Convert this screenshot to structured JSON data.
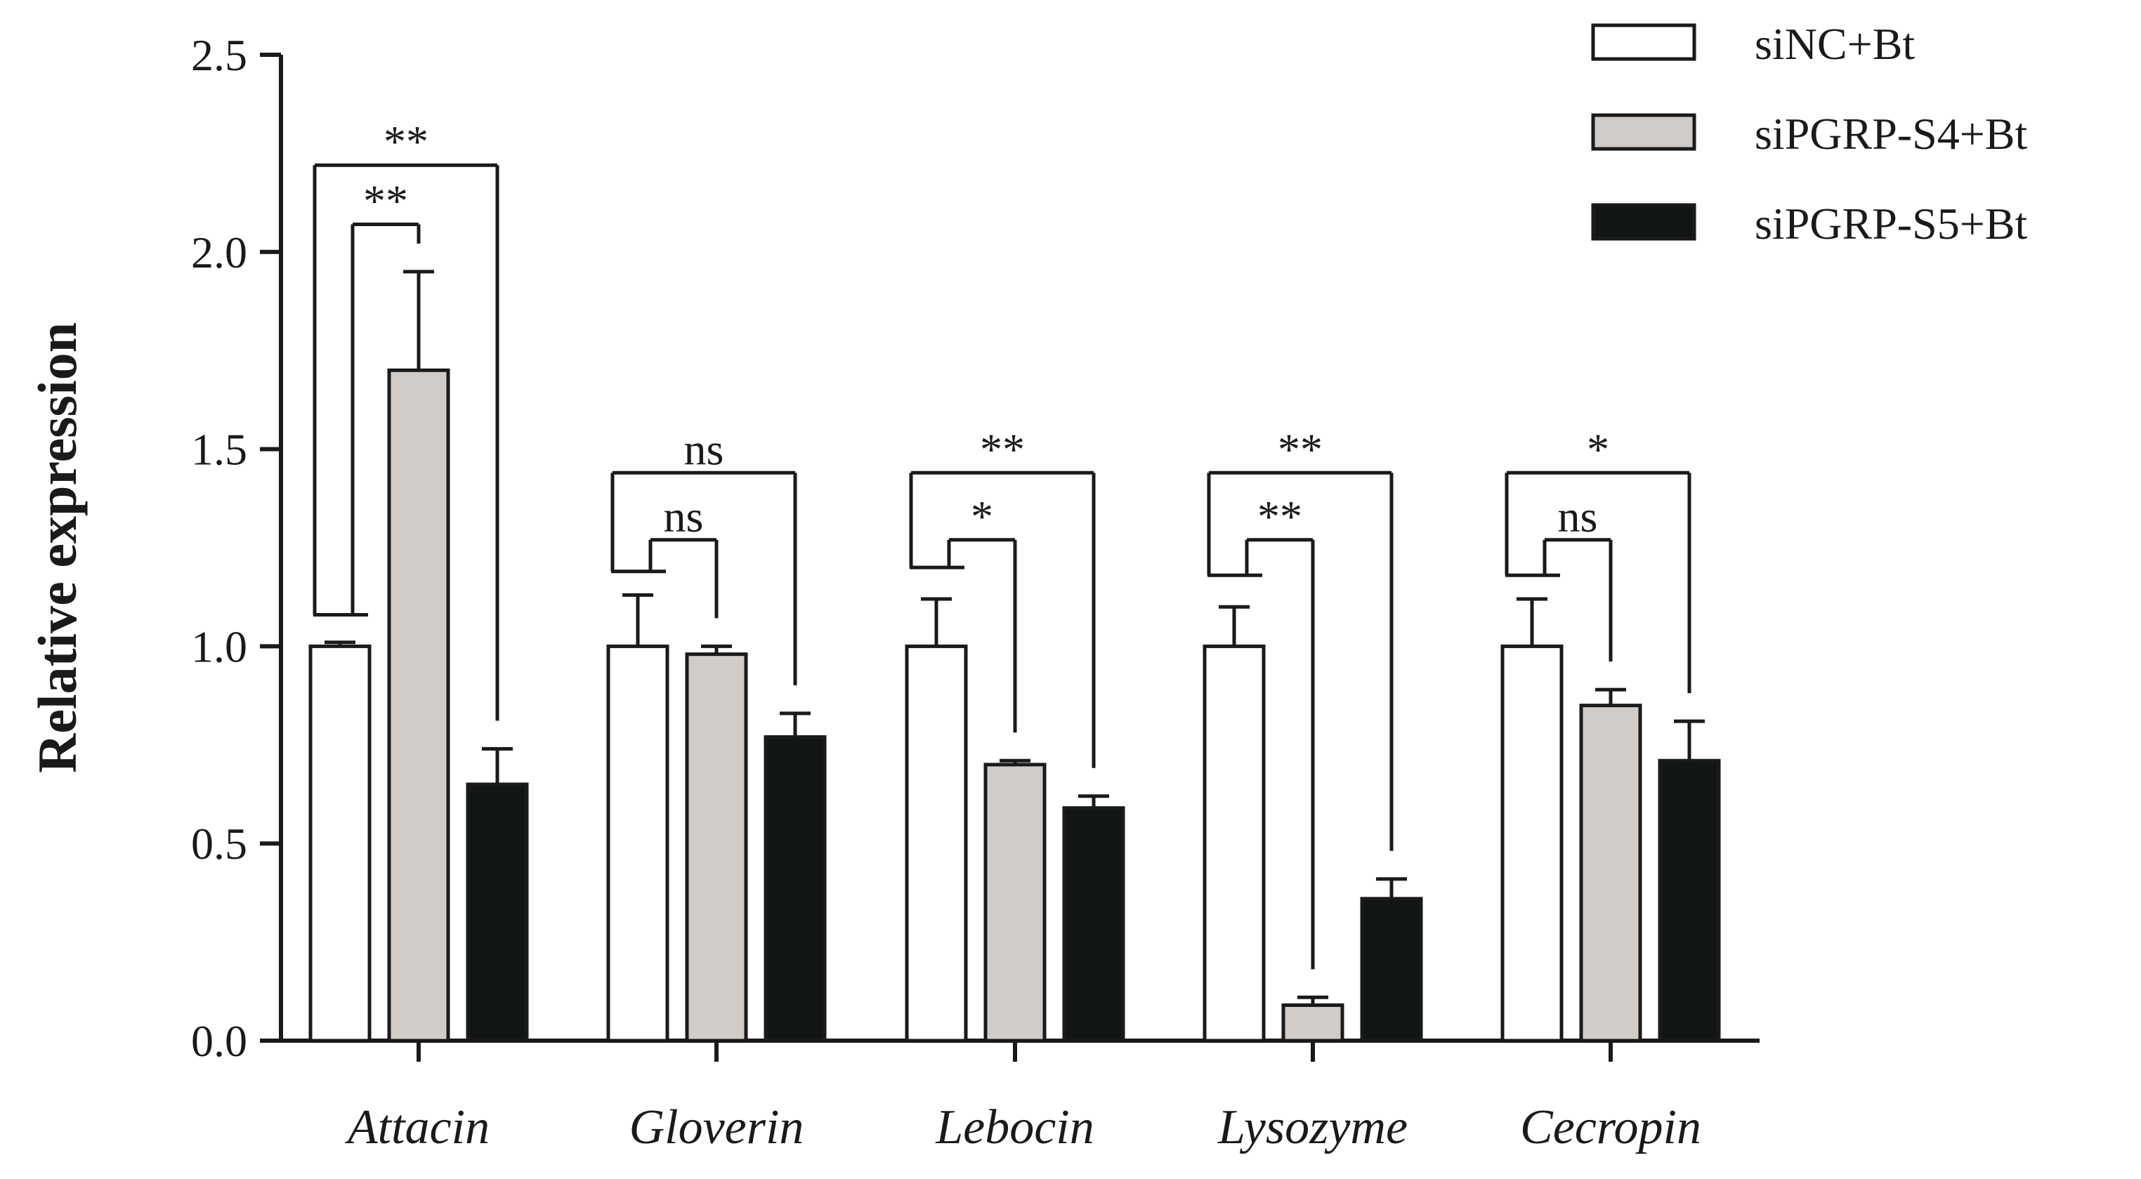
{
  "chart_data": {
    "type": "bar",
    "title": "",
    "xlabel": "",
    "ylabel": "Relative expression",
    "ylim": [
      0,
      2.5
    ],
    "yticks": [
      "0.0",
      "0.5",
      "1.0",
      "1.5",
      "2.0",
      "2.5"
    ],
    "grid": false,
    "legend_position": "top-right",
    "categories": [
      "Attacin",
      "Gloverin",
      "Lebocin",
      "Lysozyme",
      "Cecropin"
    ],
    "series": [
      {
        "name": "siNC+Bt",
        "color": "#ffffff",
        "values": [
          1.0,
          1.0,
          1.0,
          1.0,
          1.0
        ],
        "errors": [
          0.01,
          0.13,
          0.12,
          0.1,
          0.12
        ]
      },
      {
        "name": "siPGRP-S4+Bt",
        "color": "#d1ccc8",
        "values": [
          1.7,
          0.98,
          0.7,
          0.09,
          0.85
        ],
        "errors": [
          0.25,
          0.02,
          0.01,
          0.02,
          0.04
        ]
      },
      {
        "name": "siPGRP-S5+Bt",
        "color": "#121613",
        "values": [
          0.65,
          0.77,
          0.59,
          0.36,
          0.71
        ],
        "errors": [
          0.09,
          0.06,
          0.03,
          0.05,
          0.1
        ]
      }
    ],
    "annotations": [
      {
        "category": "Attacin",
        "comparisons": [
          {
            "pair": "S4",
            "label": "**",
            "level": 2.07
          },
          {
            "pair": "S5",
            "label": "**",
            "level": 2.22
          }
        ],
        "base_level": 1.08
      },
      {
        "category": "Gloverin",
        "comparisons": [
          {
            "pair": "S4",
            "label": "ns",
            "level": 1.27
          },
          {
            "pair": "S5",
            "label": "ns",
            "level": 1.44
          }
        ],
        "base_level": 1.19
      },
      {
        "category": "Lebocin",
        "comparisons": [
          {
            "pair": "S4",
            "label": "*",
            "level": 1.27
          },
          {
            "pair": "S5",
            "label": "**",
            "level": 1.44
          }
        ],
        "base_level": 1.2
      },
      {
        "category": "Lysozyme",
        "comparisons": [
          {
            "pair": "S4",
            "label": "**",
            "level": 1.27
          },
          {
            "pair": "S5",
            "label": "**",
            "level": 1.44
          }
        ],
        "base_level": 1.18
      },
      {
        "category": "Cecropin",
        "comparisons": [
          {
            "pair": "S4",
            "label": "ns",
            "level": 1.27
          },
          {
            "pair": "S5",
            "label": "*",
            "level": 1.44
          }
        ],
        "base_level": 1.18
      }
    ]
  }
}
